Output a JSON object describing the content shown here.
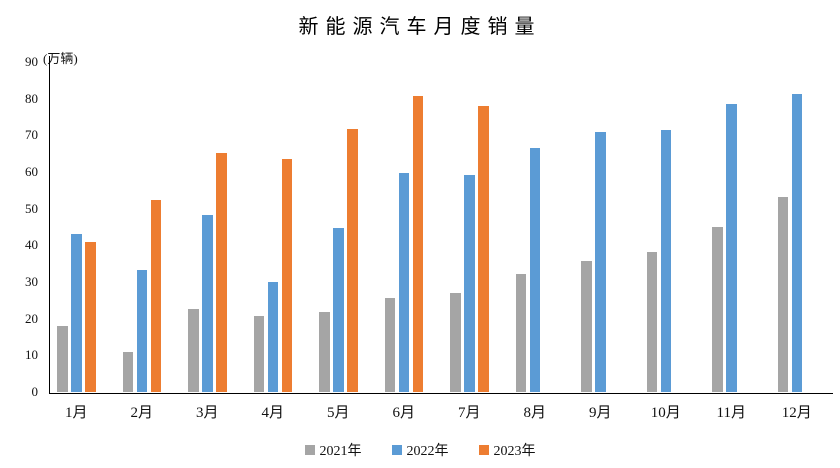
{
  "chart_data": {
    "type": "bar",
    "title": "新能源汽车月度销量",
    "unit_label": "(万辆)",
    "categories": [
      "1月",
      "2月",
      "3月",
      "4月",
      "5月",
      "6月",
      "7月",
      "8月",
      "9月",
      "10月",
      "11月",
      "12月"
    ],
    "series": [
      {
        "name": "2021年",
        "color": "#A5A5A5",
        "values": [
          17.9,
          11.0,
          22.6,
          20.6,
          21.7,
          25.6,
          27.1,
          32.1,
          35.7,
          38.3,
          45.0,
          53.1
        ]
      },
      {
        "name": "2022年",
        "color": "#5B9BD5",
        "values": [
          43.1,
          33.4,
          48.4,
          29.9,
          44.7,
          59.6,
          59.3,
          66.6,
          70.8,
          71.4,
          78.6,
          81.4
        ]
      },
      {
        "name": "2023年",
        "color": "#ED7D31",
        "values": [
          40.8,
          52.5,
          65.3,
          63.6,
          71.7,
          80.6,
          78.0,
          null,
          null,
          null,
          null,
          null
        ]
      }
    ],
    "ylim": [
      0,
      90
    ],
    "ytick_step": 10,
    "grid": false,
    "legend_position": "bottom",
    "xlabel": "",
    "ylabel": ""
  }
}
